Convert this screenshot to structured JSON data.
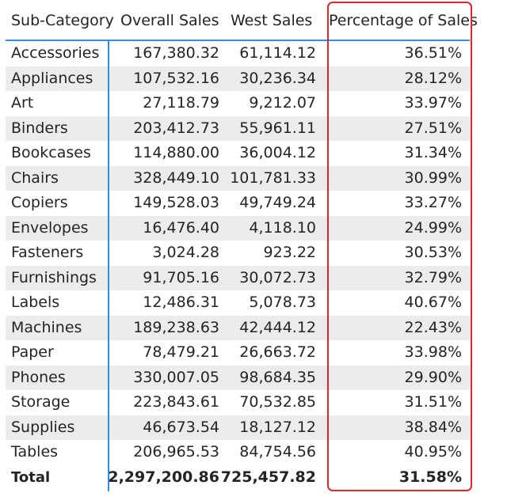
{
  "table": {
    "headers": {
      "sub_category": "Sub-Category",
      "overall_sales": "Overall Sales",
      "west_sales": "West Sales",
      "percentage_of_sales": "Percentage of Sales"
    },
    "rows": [
      {
        "sub_category": "Accessories",
        "overall_sales": "167,380.32",
        "west_sales": "61,114.12",
        "percentage": "36.51%"
      },
      {
        "sub_category": "Appliances",
        "overall_sales": "107,532.16",
        "west_sales": "30,236.34",
        "percentage": "28.12%"
      },
      {
        "sub_category": "Art",
        "overall_sales": "27,118.79",
        "west_sales": "9,212.07",
        "percentage": "33.97%"
      },
      {
        "sub_category": "Binders",
        "overall_sales": "203,412.73",
        "west_sales": "55,961.11",
        "percentage": "27.51%"
      },
      {
        "sub_category": "Bookcases",
        "overall_sales": "114,880.00",
        "west_sales": "36,004.12",
        "percentage": "31.34%"
      },
      {
        "sub_category": "Chairs",
        "overall_sales": "328,449.10",
        "west_sales": "101,781.33",
        "percentage": "30.99%"
      },
      {
        "sub_category": "Copiers",
        "overall_sales": "149,528.03",
        "west_sales": "49,749.24",
        "percentage": "33.27%"
      },
      {
        "sub_category": "Envelopes",
        "overall_sales": "16,476.40",
        "west_sales": "4,118.10",
        "percentage": "24.99%"
      },
      {
        "sub_category": "Fasteners",
        "overall_sales": "3,024.28",
        "west_sales": "923.22",
        "percentage": "30.53%"
      },
      {
        "sub_category": "Furnishings",
        "overall_sales": "91,705.16",
        "west_sales": "30,072.73",
        "percentage": "32.79%"
      },
      {
        "sub_category": "Labels",
        "overall_sales": "12,486.31",
        "west_sales": "5,078.73",
        "percentage": "40.67%"
      },
      {
        "sub_category": "Machines",
        "overall_sales": "189,238.63",
        "west_sales": "42,444.12",
        "percentage": "22.43%"
      },
      {
        "sub_category": "Paper",
        "overall_sales": "78,479.21",
        "west_sales": "26,663.72",
        "percentage": "33.98%"
      },
      {
        "sub_category": "Phones",
        "overall_sales": "330,007.05",
        "west_sales": "98,684.35",
        "percentage": "29.90%"
      },
      {
        "sub_category": "Storage",
        "overall_sales": "223,843.61",
        "west_sales": "70,532.85",
        "percentage": "31.51%"
      },
      {
        "sub_category": "Supplies",
        "overall_sales": "46,673.54",
        "west_sales": "18,127.12",
        "percentage": "38.84%"
      },
      {
        "sub_category": "Tables",
        "overall_sales": "206,965.53",
        "west_sales": "84,754.56",
        "percentage": "40.95%"
      }
    ],
    "total": {
      "label": "Total",
      "overall_sales": "2,297,200.86",
      "west_sales": "725,457.82",
      "percentage": "31.58%"
    }
  },
  "colors": {
    "accent_line": "#2f8ee5",
    "highlight_border": "#e3262b",
    "alt_row": "#ececec",
    "text": "#252423"
  }
}
